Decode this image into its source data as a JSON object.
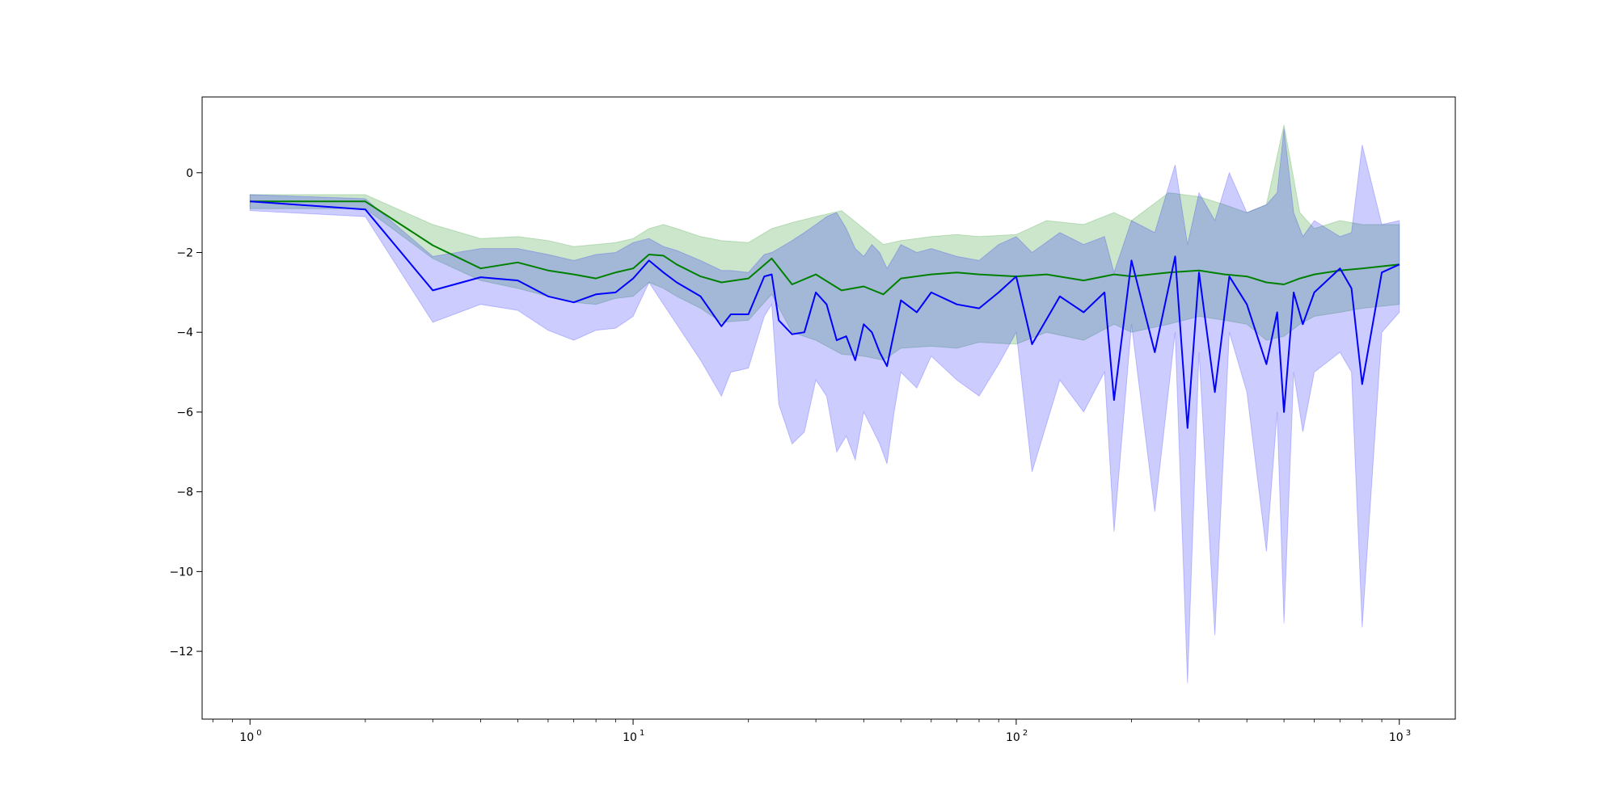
{
  "chart_data": {
    "type": "line",
    "title": "",
    "xlabel": "",
    "ylabel": "",
    "xscale": "log",
    "xlim": [
      0.75,
      1400
    ],
    "ylim": [
      -13.7,
      1.9
    ],
    "grid": false,
    "legend": "none",
    "x_tick_labels": [
      {
        "value": 1,
        "base": "10",
        "exp": "0"
      },
      {
        "value": 10,
        "base": "10",
        "exp": "1"
      },
      {
        "value": 100,
        "base": "10",
        "exp": "2"
      },
      {
        "value": 1000,
        "base": "10",
        "exp": "3"
      }
    ],
    "y_tick_labels": [
      {
        "value": 0,
        "text": "0"
      },
      {
        "value": -2,
        "text": "−2"
      },
      {
        "value": -4,
        "text": "−4"
      },
      {
        "value": -6,
        "text": "−6"
      },
      {
        "value": -8,
        "text": "−8"
      },
      {
        "value": -10,
        "text": "−10"
      },
      {
        "value": -12,
        "text": "−12"
      }
    ],
    "series": [
      {
        "color": "#008000",
        "band_color": "#008000",
        "band_opacity": 0.2,
        "x": [
          1,
          2,
          3,
          4,
          5,
          6,
          7,
          8,
          9,
          10,
          11,
          12,
          13,
          15,
          17,
          20,
          23,
          26,
          30,
          35,
          40,
          45,
          50,
          60,
          70,
          80,
          100,
          120,
          150,
          180,
          200,
          250,
          300,
          350,
          400,
          450,
          500,
          550,
          600,
          700,
          800,
          1000
        ],
        "values": [
          -0.72,
          -0.72,
          -1.82,
          -2.4,
          -2.25,
          -2.45,
          -2.55,
          -2.65,
          -2.5,
          -2.4,
          -2.05,
          -2.08,
          -2.3,
          -2.6,
          -2.75,
          -2.65,
          -2.15,
          -2.8,
          -2.55,
          -2.95,
          -2.85,
          -3.05,
          -2.65,
          -2.55,
          -2.5,
          -2.55,
          -2.6,
          -2.55,
          -2.7,
          -2.55,
          -2.6,
          -2.5,
          -2.45,
          -2.55,
          -2.6,
          -2.75,
          -2.8,
          -2.65,
          -2.55,
          -2.45,
          -2.4,
          -2.3
        ],
        "upper": [
          -0.55,
          -0.55,
          -1.3,
          -1.65,
          -1.6,
          -1.7,
          -1.85,
          -1.8,
          -1.75,
          -1.65,
          -1.4,
          -1.3,
          -1.4,
          -1.6,
          -1.7,
          -1.75,
          -1.4,
          -1.25,
          -1.1,
          -0.95,
          -1.4,
          -1.8,
          -1.7,
          -1.6,
          -1.55,
          -1.6,
          -1.55,
          -1.2,
          -1.3,
          -1.0,
          -1.2,
          -0.5,
          -0.6,
          -0.8,
          -1.0,
          -0.8,
          1.2,
          -1.0,
          -1.4,
          -1.2,
          -1.3,
          -1.3
        ],
        "lower": [
          -0.9,
          -0.9,
          -2.15,
          -2.7,
          -2.9,
          -3.1,
          -3.25,
          -3.3,
          -3.15,
          -3.1,
          -2.75,
          -2.9,
          -3.1,
          -3.4,
          -3.75,
          -3.7,
          -3.05,
          -4.0,
          -4.2,
          -4.55,
          -4.6,
          -4.7,
          -4.4,
          -4.35,
          -4.4,
          -4.25,
          -4.3,
          -4.0,
          -4.2,
          -3.8,
          -4.0,
          -3.8,
          -3.6,
          -3.7,
          -3.8,
          -4.2,
          -4.1,
          -3.8,
          -3.6,
          -3.5,
          -3.4,
          -3.3
        ]
      },
      {
        "color": "#0000ff",
        "band_color": "#0000ff",
        "band_opacity": 0.2,
        "x": [
          1,
          2,
          3,
          4,
          5,
          6,
          7,
          8,
          9,
          10,
          11,
          12,
          13,
          15,
          17,
          18,
          20,
          22,
          23,
          24,
          26,
          28,
          30,
          32,
          34,
          36,
          38,
          40,
          42,
          44,
          46,
          48,
          50,
          55,
          60,
          70,
          80,
          90,
          100,
          110,
          130,
          150,
          170,
          180,
          200,
          230,
          260,
          280,
          300,
          330,
          360,
          400,
          450,
          480,
          500,
          530,
          560,
          600,
          700,
          750,
          800,
          900,
          1000
        ],
        "values": [
          -0.72,
          -0.92,
          -2.95,
          -2.62,
          -2.7,
          -3.1,
          -3.25,
          -3.05,
          -3.0,
          -2.65,
          -2.2,
          -2.5,
          -2.75,
          -3.1,
          -3.85,
          -3.55,
          -3.55,
          -2.6,
          -2.55,
          -3.7,
          -4.05,
          -4.0,
          -3.0,
          -3.3,
          -4.2,
          -4.1,
          -4.7,
          -3.8,
          -4.0,
          -4.5,
          -4.85,
          -4.0,
          -3.2,
          -3.5,
          -3.0,
          -3.3,
          -3.4,
          -3.0,
          -2.6,
          -4.3,
          -3.1,
          -3.5,
          -3.0,
          -5.7,
          -2.2,
          -4.5,
          -2.1,
          -6.4,
          -2.5,
          -5.5,
          -2.6,
          -3.3,
          -4.8,
          -3.5,
          -6.0,
          -3.0,
          -3.8,
          -3.0,
          -2.4,
          -2.9,
          -5.3,
          -2.5,
          -2.3
        ],
        "upper": [
          -0.55,
          -0.65,
          -2.1,
          -1.9,
          -1.9,
          -2.05,
          -2.2,
          -2.05,
          -2.0,
          -1.75,
          -1.65,
          -1.85,
          -1.95,
          -2.2,
          -2.45,
          -2.45,
          -2.5,
          -2.05,
          -2.0,
          -1.9,
          -1.7,
          -1.5,
          -1.3,
          -1.1,
          -1.0,
          -1.4,
          -1.9,
          -2.1,
          -1.8,
          -2.0,
          -2.4,
          -2.1,
          -1.8,
          -2.0,
          -1.9,
          -2.1,
          -2.2,
          -1.8,
          -1.6,
          -2.0,
          -1.5,
          -1.8,
          -1.6,
          -2.5,
          -1.2,
          -1.5,
          0.2,
          -1.8,
          -0.5,
          -1.2,
          0.0,
          -1.0,
          -0.8,
          -0.5,
          1.1,
          -1.0,
          -1.6,
          -1.2,
          -1.6,
          -1.5,
          0.7,
          -1.3,
          -1.2
        ],
        "lower": [
          -0.95,
          -1.1,
          -3.75,
          -3.3,
          -3.45,
          -3.95,
          -4.2,
          -3.95,
          -3.9,
          -3.6,
          -2.75,
          -3.3,
          -3.8,
          -4.7,
          -5.6,
          -5.0,
          -4.9,
          -3.6,
          -3.3,
          -5.8,
          -6.8,
          -6.5,
          -5.2,
          -5.6,
          -7.0,
          -6.6,
          -7.2,
          -6.0,
          -6.4,
          -6.8,
          -7.3,
          -6.0,
          -5.0,
          -5.4,
          -4.6,
          -5.2,
          -5.6,
          -4.8,
          -4.0,
          -7.5,
          -5.2,
          -6.0,
          -5.0,
          -9.0,
          -3.8,
          -8.5,
          -4.0,
          -12.8,
          -4.5,
          -11.6,
          -4.0,
          -5.5,
          -9.5,
          -6.0,
          -11.3,
          -5.0,
          -6.5,
          -5.0,
          -4.5,
          -5.0,
          -11.4,
          -4.0,
          -3.5
        ]
      }
    ]
  }
}
